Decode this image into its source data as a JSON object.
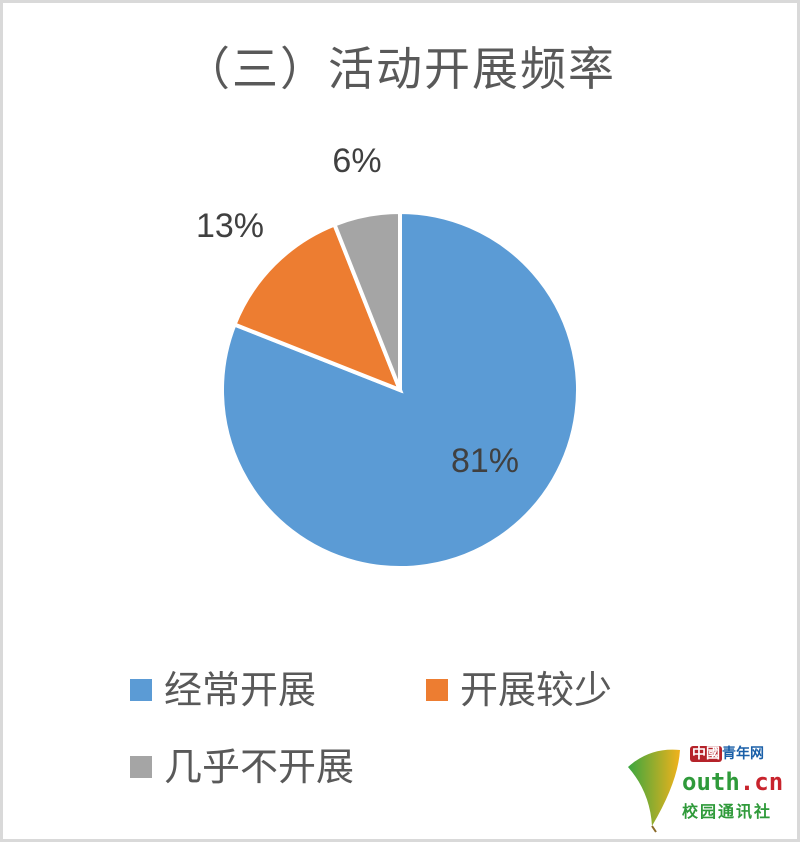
{
  "chart_data": {
    "type": "pie",
    "title": "（三）活动开展频率",
    "categories": [
      "经常开展",
      "开展较少",
      "几乎不开展"
    ],
    "values": [
      81,
      13,
      6
    ],
    "labels": [
      "81%",
      "13%",
      "6%"
    ],
    "colors": [
      "#5b9bd5",
      "#ed7d31",
      "#a5a5a5"
    ],
    "legend_position": "bottom"
  },
  "watermark": {
    "line1_badge": "中國",
    "line1": "青年网",
    "line2_prefix": "outh",
    "line2_suffix": ".cn",
    "line3": "校园通讯社"
  }
}
